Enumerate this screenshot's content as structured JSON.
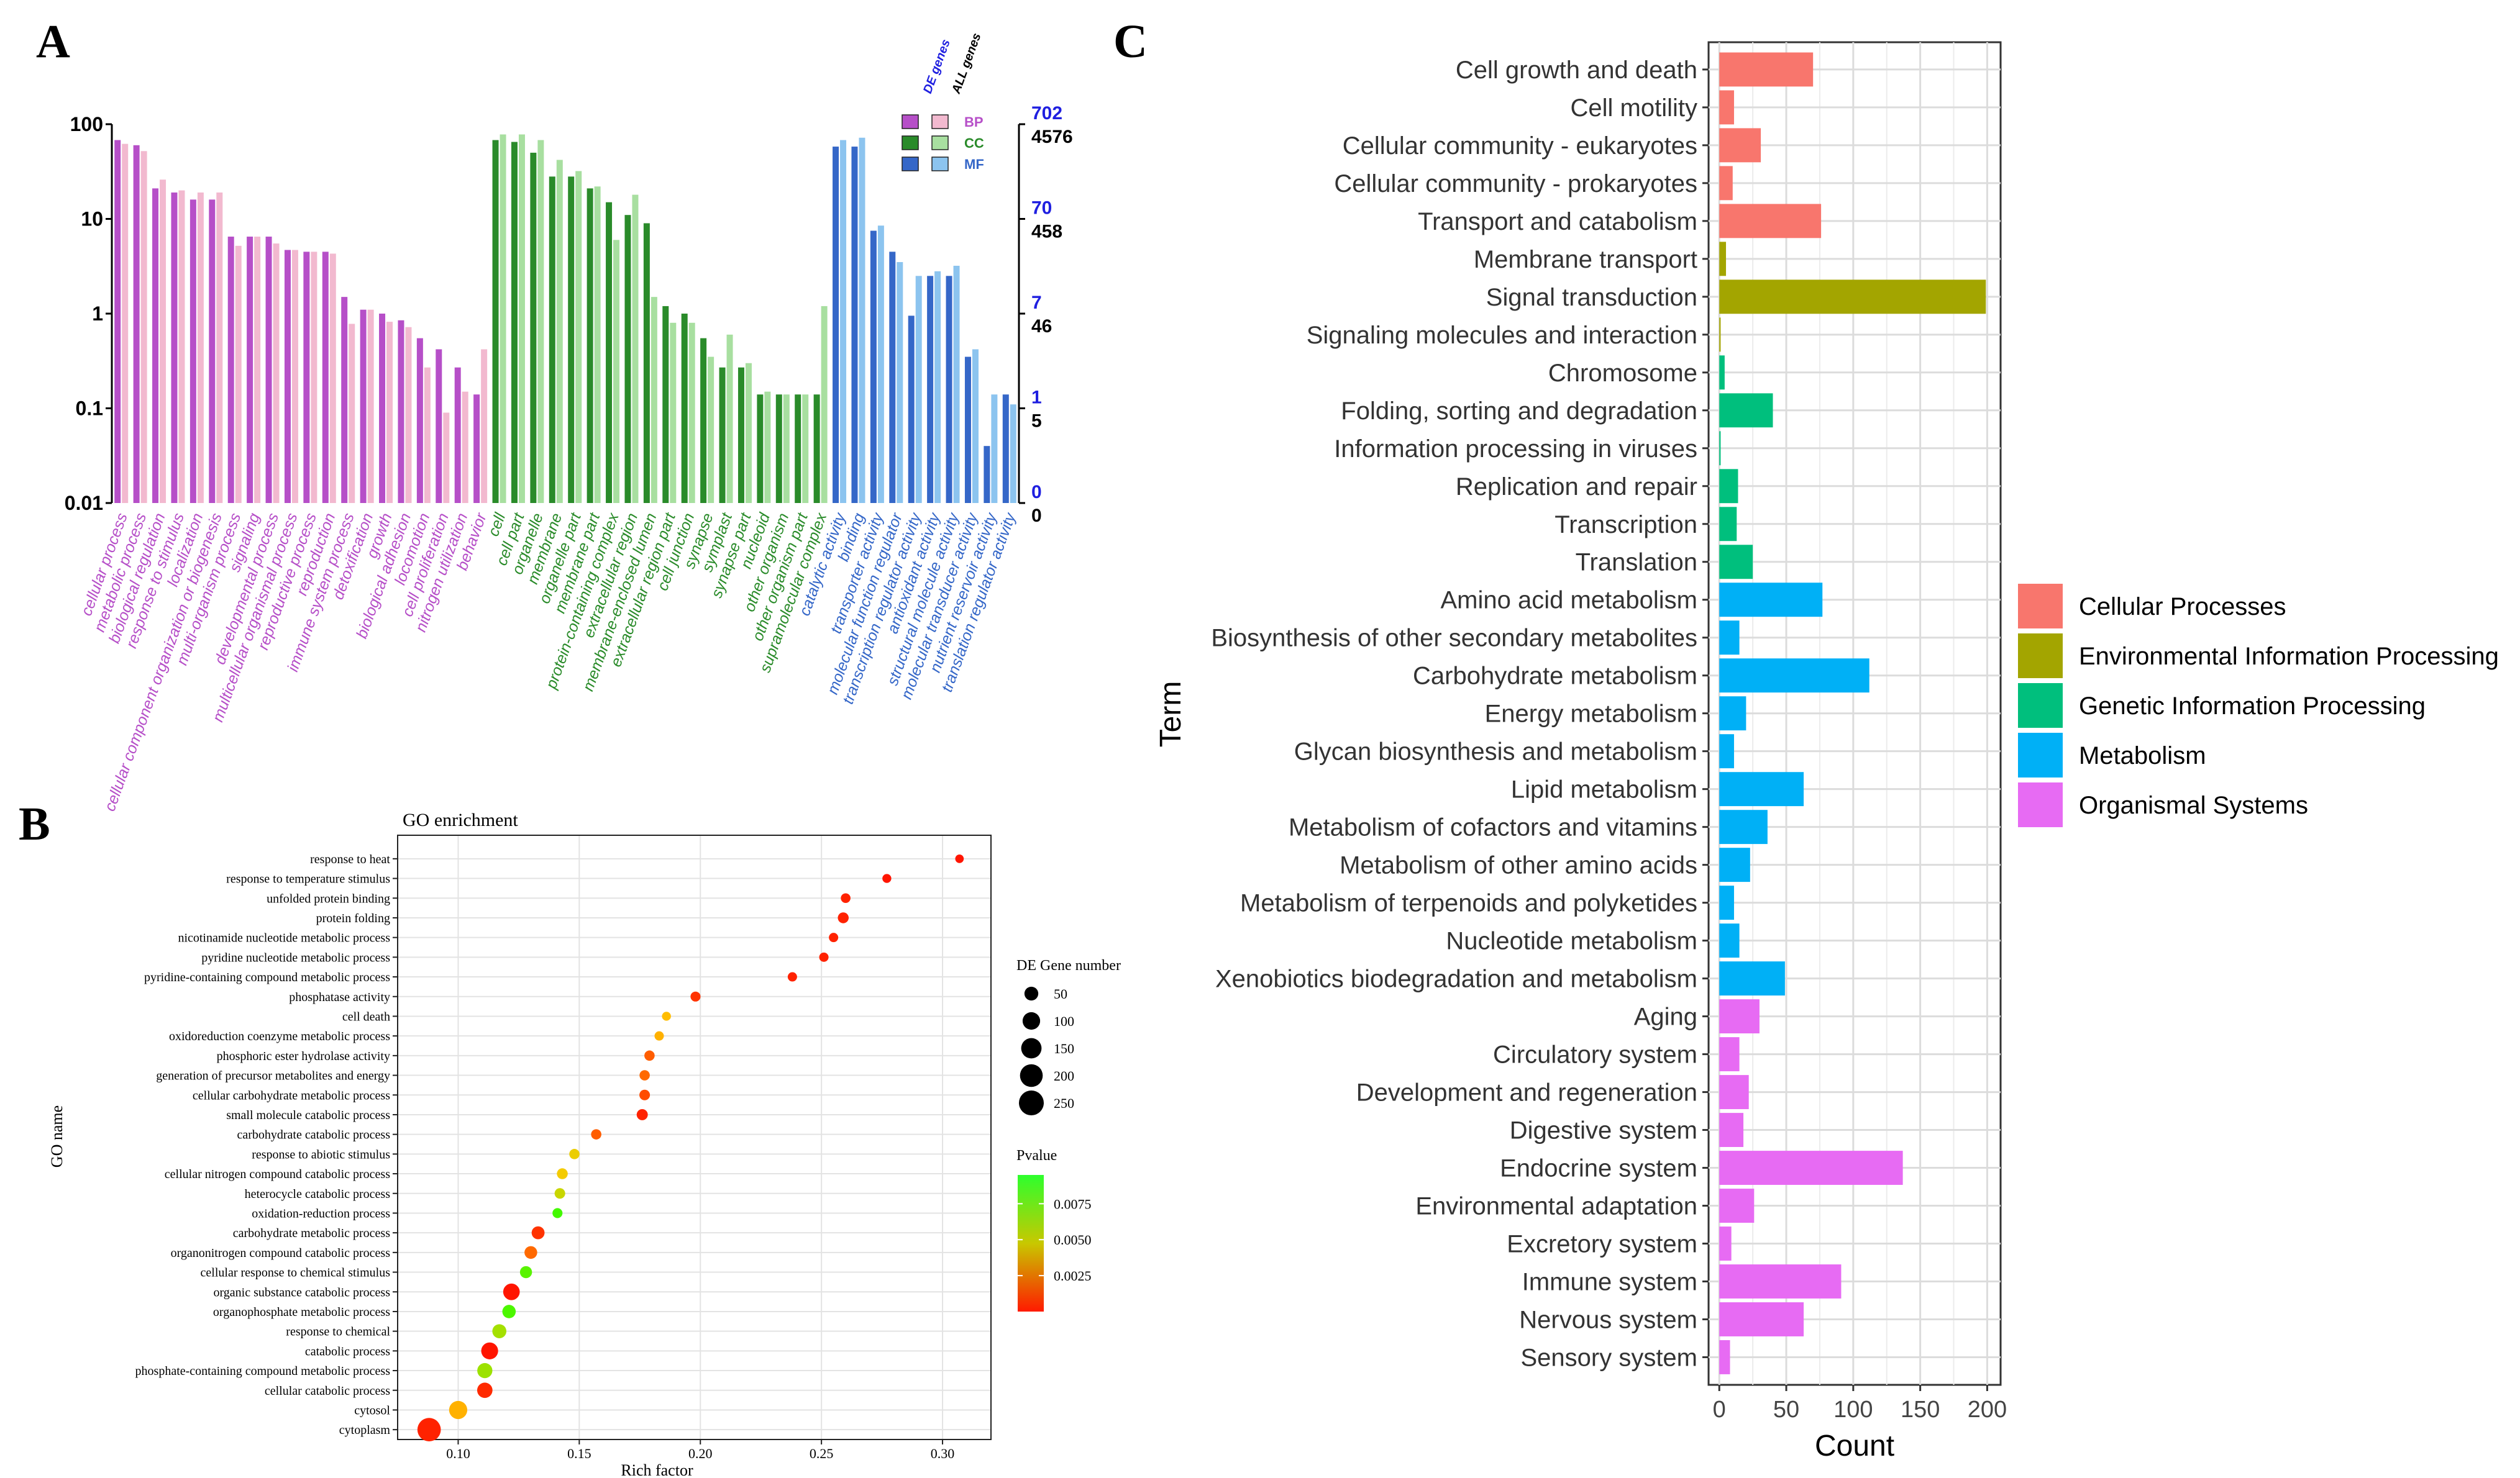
{
  "panel_labels": {
    "a": "A",
    "b": "B",
    "c": "C"
  },
  "colors": {
    "bp_de": "#b64fc8",
    "bp_all": "#f2b9cf",
    "cc_de": "#2a8b2a",
    "cc_all": "#a8dfa0",
    "mf_de": "#3567c8",
    "mf_all": "#8cc4ef",
    "cellular": "#f8766d",
    "environmental": "#a3a500",
    "genetic": "#00bf7d",
    "metabolism": "#00b0f6",
    "organismal": "#e76bf3",
    "right_axis_blue": "#1f1fe0"
  },
  "chart_data": [
    {
      "id": "A",
      "type": "bar",
      "scale": "log",
      "ylim": [
        0.01,
        100
      ],
      "left_ticks": [
        "100",
        "10",
        "1",
        "0.1",
        "0.01"
      ],
      "right_ticks_de": [
        "702",
        "70",
        "7",
        "1",
        "0"
      ],
      "right_ticks_all": [
        "4576",
        "458",
        "46",
        "5",
        "0"
      ],
      "legend": {
        "header_de": "DE genes",
        "header_all": "ALL genes",
        "labels": [
          "BP",
          "CC",
          "MF"
        ]
      },
      "categories": [
        {
          "label": "cellular process",
          "group": "BP",
          "de": 68,
          "all": 62
        },
        {
          "label": "metabolic process",
          "group": "BP",
          "de": 60,
          "all": 52
        },
        {
          "label": "biological regulation",
          "group": "BP",
          "de": 21,
          "all": 26
        },
        {
          "label": "response to stimulus",
          "group": "BP",
          "de": 19,
          "all": 20
        },
        {
          "label": "localization",
          "group": "BP",
          "de": 16,
          "all": 19
        },
        {
          "label": "cellular component organization or biogenesis",
          "group": "BP",
          "de": 16,
          "all": 19
        },
        {
          "label": "multi-organism process",
          "group": "BP",
          "de": 6.5,
          "all": 5.2
        },
        {
          "label": "signaling",
          "group": "BP",
          "de": 6.5,
          "all": 6.5
        },
        {
          "label": "developmental process",
          "group": "BP",
          "de": 6.5,
          "all": 5.5
        },
        {
          "label": "multicellular organismal process",
          "group": "BP",
          "de": 4.7,
          "all": 4.7
        },
        {
          "label": "reproductive process",
          "group": "BP",
          "de": 4.5,
          "all": 4.5
        },
        {
          "label": "reproduction",
          "group": "BP",
          "de": 4.5,
          "all": 4.3
        },
        {
          "label": "immune system process",
          "group": "BP",
          "de": 1.5,
          "all": 0.78
        },
        {
          "label": "detoxification",
          "group": "BP",
          "de": 1.1,
          "all": 1.1
        },
        {
          "label": "growth",
          "group": "BP",
          "de": 1.0,
          "all": 0.82
        },
        {
          "label": "biological adhesion",
          "group": "BP",
          "de": 0.85,
          "all": 0.72
        },
        {
          "label": "locomotion",
          "group": "BP",
          "de": 0.55,
          "all": 0.27
        },
        {
          "label": "cell proliferation",
          "group": "BP",
          "de": 0.42,
          "all": 0.09
        },
        {
          "label": "nitrogen utilization",
          "group": "BP",
          "de": 0.27,
          "all": 0.15
        },
        {
          "label": "behavior",
          "group": "BP",
          "de": 0.14,
          "all": 0.42
        },
        {
          "label": "cell",
          "group": "CC",
          "de": 68,
          "all": 78
        },
        {
          "label": "cell part",
          "group": "CC",
          "de": 65,
          "all": 78
        },
        {
          "label": "organelle",
          "group": "CC",
          "de": 50,
          "all": 68
        },
        {
          "label": "membrane",
          "group": "CC",
          "de": 28,
          "all": 42
        },
        {
          "label": "organelle part",
          "group": "CC",
          "de": 28,
          "all": 32
        },
        {
          "label": "membrane part",
          "group": "CC",
          "de": 21,
          "all": 22
        },
        {
          "label": "protein-containing complex",
          "group": "CC",
          "de": 15,
          "all": 6
        },
        {
          "label": "extracellular region",
          "group": "CC",
          "de": 11,
          "all": 18
        },
        {
          "label": "membrane-enclosed lumen",
          "group": "CC",
          "de": 9,
          "all": 1.5
        },
        {
          "label": "extracellular region part",
          "group": "CC",
          "de": 1.2,
          "all": 0.8
        },
        {
          "label": "cell junction",
          "group": "CC",
          "de": 1.0,
          "all": 0.8
        },
        {
          "label": "synapse",
          "group": "CC",
          "de": 0.55,
          "all": 0.35
        },
        {
          "label": "symplast",
          "group": "CC",
          "de": 0.27,
          "all": 0.6
        },
        {
          "label": "synapse part",
          "group": "CC",
          "de": 0.27,
          "all": 0.3
        },
        {
          "label": "nucleoid",
          "group": "CC",
          "de": 0.14,
          "all": 0.15
        },
        {
          "label": "other organism",
          "group": "CC",
          "de": 0.14,
          "all": 0.14
        },
        {
          "label": "other organism part",
          "group": "CC",
          "de": 0.14,
          "all": 0.14
        },
        {
          "label": "supramolecular complex",
          "group": "CC",
          "de": 0.14,
          "all": 1.2
        },
        {
          "label": "catalytic activity",
          "group": "MF",
          "de": 58,
          "all": 68
        },
        {
          "label": "binding",
          "group": "MF",
          "de": 58,
          "all": 72
        },
        {
          "label": "transporter activity",
          "group": "MF",
          "de": 7.5,
          "all": 8.5
        },
        {
          "label": "molecular function regulator",
          "group": "MF",
          "de": 4.5,
          "all": 3.5
        },
        {
          "label": "transcription regulator activity",
          "group": "MF",
          "de": 0.95,
          "all": 2.5
        },
        {
          "label": "antioxidant activity",
          "group": "MF",
          "de": 2.5,
          "all": 2.8
        },
        {
          "label": "structural molecule activity",
          "group": "MF",
          "de": 2.5,
          "all": 3.2
        },
        {
          "label": "molecular transducer activity",
          "group": "MF",
          "de": 0.35,
          "all": 0.42
        },
        {
          "label": "nutrient reservoir activity",
          "group": "MF",
          "de": 0.04,
          "all": 0.14
        },
        {
          "label": "translation regulator activity",
          "group": "MF",
          "de": 0.14,
          "all": 0.11
        }
      ]
    },
    {
      "id": "B",
      "type": "scatter",
      "title": "GO enrichment",
      "xlabel": "Rich factor",
      "ylabel": "GO name",
      "xlim": [
        0.075,
        0.32
      ],
      "x_ticks": [
        0.1,
        0.15,
        0.2,
        0.25,
        0.3
      ],
      "x_tick_labels": [
        "0.10",
        "0.15",
        "0.20",
        "0.25",
        "0.30"
      ],
      "size_legend": {
        "title": "DE Gene number",
        "values": [
          50,
          100,
          150,
          200,
          250
        ],
        "labels": [
          "50",
          "100",
          "150",
          "200",
          "250"
        ]
      },
      "color_legend": {
        "title": "Pvalue",
        "min": 0.0,
        "max": 0.0095,
        "ticks": [
          0.0075,
          0.005,
          0.0025
        ],
        "labels": [
          "0.0075",
          "0.0050",
          "0.0025"
        ]
      },
      "points": [
        {
          "term": "response to heat",
          "x": 0.307,
          "count": 8,
          "p": 0.0005
        },
        {
          "term": "response to temperature stimulus",
          "x": 0.277,
          "count": 10,
          "p": 0.0005
        },
        {
          "term": "unfolded protein binding",
          "x": 0.26,
          "count": 14,
          "p": 0.0008
        },
        {
          "term": "protein folding",
          "x": 0.259,
          "count": 22,
          "p": 0.0008
        },
        {
          "term": "nicotinamide nucleotide metabolic process",
          "x": 0.255,
          "count": 12,
          "p": 0.0008
        },
        {
          "term": "pyridine nucleotide metabolic process",
          "x": 0.251,
          "count": 12,
          "p": 0.0008
        },
        {
          "term": "pyridine-containing compound metabolic process",
          "x": 0.238,
          "count": 12,
          "p": 0.0008
        },
        {
          "term": "phosphatase activity",
          "x": 0.198,
          "count": 16,
          "p": 0.0012
        },
        {
          "term": "cell death",
          "x": 0.186,
          "count": 10,
          "p": 0.0045
        },
        {
          "term": "oxidoreduction coenzyme metabolic process",
          "x": 0.183,
          "count": 12,
          "p": 0.0042
        },
        {
          "term": "phosphoric ester hydrolase activity",
          "x": 0.179,
          "count": 18,
          "p": 0.0022
        },
        {
          "term": "generation of precursor metabolites and energy",
          "x": 0.177,
          "count": 18,
          "p": 0.0025
        },
        {
          "term": "cellular carbohydrate metabolic process",
          "x": 0.177,
          "count": 20,
          "p": 0.0018
        },
        {
          "term": "small molecule catabolic process",
          "x": 0.176,
          "count": 24,
          "p": 0.0008
        },
        {
          "term": "carbohydrate catabolic process",
          "x": 0.157,
          "count": 18,
          "p": 0.0022
        },
        {
          "term": "response to abiotic stimulus",
          "x": 0.148,
          "count": 18,
          "p": 0.0052
        },
        {
          "term": "cellular nitrogen compound catabolic process",
          "x": 0.143,
          "count": 22,
          "p": 0.005
        },
        {
          "term": "heterocycle catabolic process",
          "x": 0.142,
          "count": 20,
          "p": 0.006
        },
        {
          "term": "oxidation-reduction process",
          "x": 0.141,
          "count": 16,
          "p": 0.009
        },
        {
          "term": "carbohydrate metabolic process",
          "x": 0.133,
          "count": 40,
          "p": 0.0012
        },
        {
          "term": "organonitrogen compound catabolic process",
          "x": 0.13,
          "count": 38,
          "p": 0.0025
        },
        {
          "term": "cellular response to chemical stimulus",
          "x": 0.128,
          "count": 32,
          "p": 0.0085
        },
        {
          "term": "organic substance catabolic process",
          "x": 0.122,
          "count": 85,
          "p": 0.0005
        },
        {
          "term": "organophosphate metabolic process",
          "x": 0.121,
          "count": 45,
          "p": 0.0088
        },
        {
          "term": "response to chemical",
          "x": 0.117,
          "count": 52,
          "p": 0.0068
        },
        {
          "term": "catabolic process",
          "x": 0.113,
          "count": 90,
          "p": 0.0005
        },
        {
          "term": "phosphate-containing compound metabolic process",
          "x": 0.111,
          "count": 65,
          "p": 0.007
        },
        {
          "term": "cellular catabolic process",
          "x": 0.111,
          "count": 68,
          "p": 0.001
        },
        {
          "term": "cytosol",
          "x": 0.1,
          "count": 110,
          "p": 0.0042
        },
        {
          "term": "cytoplasm",
          "x": 0.088,
          "count": 215,
          "p": 0.0008
        }
      ]
    },
    {
      "id": "C",
      "type": "bar",
      "orientation": "horizontal",
      "xlabel": "Count",
      "ylabel": "Term",
      "xlim": [
        -8,
        210
      ],
      "x_ticks": [
        0,
        50,
        100,
        150,
        200
      ],
      "x_tick_labels": [
        "0",
        "50",
        "100",
        "150",
        "200"
      ],
      "legend": [
        {
          "key": "cellular",
          "label": "Cellular Processes"
        },
        {
          "key": "environmental",
          "label": "Environmental Information Processing"
        },
        {
          "key": "genetic",
          "label": "Genetic Information Processing"
        },
        {
          "key": "metabolism",
          "label": "Metabolism"
        },
        {
          "key": "organismal",
          "label": "Organismal Systems"
        }
      ],
      "bars": [
        {
          "term": "Cell growth and death",
          "value": 70,
          "cat": "cellular"
        },
        {
          "term": "Cell motility",
          "value": 11,
          "cat": "cellular"
        },
        {
          "term": "Cellular community - eukaryotes",
          "value": 31,
          "cat": "cellular"
        },
        {
          "term": "Cellular community - prokaryotes",
          "value": 10,
          "cat": "cellular"
        },
        {
          "term": "Transport and catabolism",
          "value": 76,
          "cat": "cellular"
        },
        {
          "term": "Membrane transport",
          "value": 5,
          "cat": "environmental"
        },
        {
          "term": "Signal transduction",
          "value": 199,
          "cat": "environmental"
        },
        {
          "term": "Signaling molecules and interaction",
          "value": 1,
          "cat": "environmental"
        },
        {
          "term": "Chromosome",
          "value": 4,
          "cat": "genetic"
        },
        {
          "term": "Folding, sorting and degradation",
          "value": 40,
          "cat": "genetic"
        },
        {
          "term": "Information processing in viruses",
          "value": 1,
          "cat": "genetic"
        },
        {
          "term": "Replication and repair",
          "value": 14,
          "cat": "genetic"
        },
        {
          "term": "Transcription",
          "value": 13,
          "cat": "genetic"
        },
        {
          "term": "Translation",
          "value": 25,
          "cat": "genetic"
        },
        {
          "term": "Amino acid metabolism",
          "value": 77,
          "cat": "metabolism"
        },
        {
          "term": "Biosynthesis of other secondary metabolites",
          "value": 15,
          "cat": "metabolism"
        },
        {
          "term": "Carbohydrate metabolism",
          "value": 112,
          "cat": "metabolism"
        },
        {
          "term": "Energy metabolism",
          "value": 20,
          "cat": "metabolism"
        },
        {
          "term": "Glycan biosynthesis and metabolism",
          "value": 11,
          "cat": "metabolism"
        },
        {
          "term": "Lipid metabolism",
          "value": 63,
          "cat": "metabolism"
        },
        {
          "term": "Metabolism of cofactors and vitamins",
          "value": 36,
          "cat": "metabolism"
        },
        {
          "term": "Metabolism of other amino acids",
          "value": 23,
          "cat": "metabolism"
        },
        {
          "term": "Metabolism of terpenoids and polyketides",
          "value": 11,
          "cat": "metabolism"
        },
        {
          "term": "Nucleotide metabolism",
          "value": 15,
          "cat": "metabolism"
        },
        {
          "term": "Xenobiotics biodegradation and metabolism",
          "value": 49,
          "cat": "metabolism"
        },
        {
          "term": "Aging",
          "value": 30,
          "cat": "organismal"
        },
        {
          "term": "Circulatory system",
          "value": 15,
          "cat": "organismal"
        },
        {
          "term": "Development and regeneration",
          "value": 22,
          "cat": "organismal"
        },
        {
          "term": "Digestive system",
          "value": 18,
          "cat": "organismal"
        },
        {
          "term": "Endocrine system",
          "value": 137,
          "cat": "organismal"
        },
        {
          "term": "Environmental adaptation",
          "value": 26,
          "cat": "organismal"
        },
        {
          "term": "Excretory system",
          "value": 9,
          "cat": "organismal"
        },
        {
          "term": "Immune system",
          "value": 91,
          "cat": "organismal"
        },
        {
          "term": "Nervous system",
          "value": 63,
          "cat": "organismal"
        },
        {
          "term": "Sensory system",
          "value": 8,
          "cat": "organismal"
        }
      ]
    }
  ]
}
